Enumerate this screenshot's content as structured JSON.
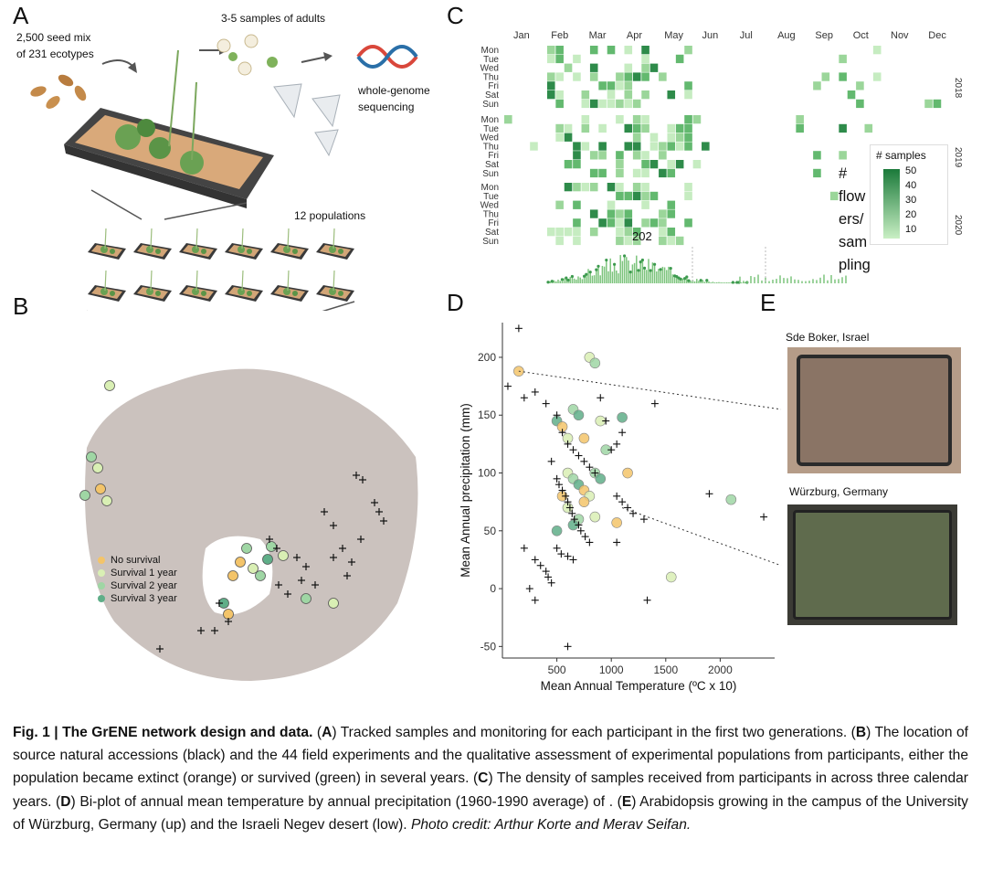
{
  "panels": {
    "a": "A",
    "b": "B",
    "c": "C",
    "d": "D",
    "e": "E"
  },
  "panel_a": {
    "seed_line1": "2,500 seed mix",
    "seed_line2": "of 231 ecotypes",
    "samples": "3-5 samples of adults",
    "wgs_line1": "whole-genome",
    "wgs_line2": "sequencing",
    "populations": "12 populations"
  },
  "panel_b": {
    "legend": [
      {
        "label": "No survival",
        "color": "#f3c46a"
      },
      {
        "label": "Survival 1 year",
        "color": "#d9efb4"
      },
      {
        "label": "Survival 2 year",
        "color": "#9fd6a4"
      },
      {
        "label": "Survival 3 year",
        "color": "#5fae88"
      }
    ]
  },
  "panel_c": {
    "months": [
      "Jan",
      "Feb",
      "Mar",
      "Apr",
      "May",
      "Jun",
      "Jul",
      "Aug",
      "Sep",
      "Oct",
      "Nov",
      "Dec"
    ],
    "days": [
      "Mon",
      "Tue",
      "Wed",
      "Thu",
      "Fri",
      "Sat",
      "Sun"
    ],
    "years": [
      "2018",
      "2019",
      "2020"
    ],
    "legend_title": "# samples",
    "legend_ticks": [
      "50",
      "40",
      "30",
      "20",
      "10"
    ],
    "annotation": [
      "#",
      "flow",
      "ers/",
      "sam",
      "pling"
    ],
    "peak_label": "202"
  },
  "panel_d": {
    "xlabel": "Mean Annual Temperature (ºC x 10)",
    "ylabel": "Mean Annual precipitation (mm)",
    "xticks": [
      "500",
      "1000",
      "1500",
      "2000"
    ],
    "yticks": [
      "200",
      "150",
      "100",
      "50",
      "0",
      "-50"
    ]
  },
  "panel_e": {
    "photo1_label": "Sde Boker, Israel",
    "photo2_label": "Würzburg, Germany"
  },
  "chart_data": [
    {
      "type": "heatmap",
      "title": "",
      "x": [
        "Jan",
        "Feb",
        "Mar",
        "Apr",
        "May",
        "Jun",
        "Jul",
        "Aug",
        "Sep",
        "Oct",
        "Nov",
        "Dec"
      ],
      "y": [
        "Mon",
        "Tue",
        "Wed",
        "Thu",
        "Fri",
        "Sat",
        "Sun"
      ],
      "facets": [
        "2018",
        "2019",
        "2020"
      ],
      "legend": {
        "title": "# samples",
        "range": [
          0,
          50
        ]
      }
    },
    {
      "type": "scatter",
      "xlabel": "Mean Annual Temperature (ºC x 10)",
      "ylabel": "Mean Annual precipitation (mm)",
      "xlim": [
        0,
        2500
      ],
      "ylim": [
        -60,
        230
      ],
      "series": [
        {
          "name": "",
          "marker": "plus",
          "points": [
            [
              150,
              225
            ],
            [
              50,
              175
            ],
            [
              200,
              165
            ],
            [
              300,
              170
            ],
            [
              400,
              160
            ],
            [
              500,
              150
            ],
            [
              550,
              135
            ],
            [
              600,
              125
            ],
            [
              650,
              120
            ],
            [
              700,
              115
            ],
            [
              750,
              110
            ],
            [
              800,
              105
            ],
            [
              850,
              100
            ],
            [
              450,
              110
            ],
            [
              500,
              95
            ],
            [
              520,
              90
            ],
            [
              550,
              85
            ],
            [
              580,
              80
            ],
            [
              600,
              75
            ],
            [
              620,
              70
            ],
            [
              640,
              65
            ],
            [
              660,
              60
            ],
            [
              700,
              55
            ],
            [
              720,
              50
            ],
            [
              760,
              45
            ],
            [
              800,
              40
            ],
            [
              500,
              35
            ],
            [
              540,
              30
            ],
            [
              600,
              28
            ],
            [
              650,
              25
            ],
            [
              300,
              25
            ],
            [
              350,
              20
            ],
            [
              400,
              15
            ],
            [
              420,
              10
            ],
            [
              450,
              5
            ],
            [
              250,
              0
            ],
            [
              300,
              -10
            ],
            [
              600,
              -50
            ],
            [
              1050,
              80
            ],
            [
              1100,
              75
            ],
            [
              1150,
              70
            ],
            [
              1200,
              65
            ],
            [
              1300,
              60
            ],
            [
              1900,
              82
            ],
            [
              2400,
              62
            ],
            [
              1400,
              160
            ],
            [
              1050,
              125
            ],
            [
              1100,
              135
            ],
            [
              900,
              165
            ],
            [
              950,
              145
            ],
            [
              1000,
              120
            ],
            [
              1330,
              -10
            ],
            [
              1050,
              40
            ],
            [
              200,
              35
            ]
          ]
        },
        {
          "name": "",
          "marker": "circle",
          "points": [
            [
              150,
              188
            ],
            [
              800,
              200
            ],
            [
              850,
              195
            ],
            [
              500,
              145
            ],
            [
              550,
              140
            ],
            [
              600,
              130
            ],
            [
              650,
              155
            ],
            [
              700,
              150
            ],
            [
              750,
              130
            ],
            [
              900,
              145
            ],
            [
              950,
              120
            ],
            [
              1100,
              148
            ],
            [
              1150,
              100
            ],
            [
              600,
              100
            ],
            [
              650,
              95
            ],
            [
              700,
              90
            ],
            [
              750,
              85
            ],
            [
              800,
              80
            ],
            [
              850,
              100
            ],
            [
              900,
              95
            ],
            [
              550,
              80
            ],
            [
              600,
              70
            ],
            [
              700,
              60
            ],
            [
              650,
              55
            ],
            [
              1050,
              57
            ],
            [
              1550,
              10
            ],
            [
              2100,
              77
            ],
            [
              500,
              50
            ],
            [
              750,
              75
            ],
            [
              850,
              62
            ]
          ]
        }
      ]
    }
  ],
  "caption": {
    "fig": "Fig. 1 | The GrENE network design and data.",
    "a_letter": "A",
    "a_text": " Tracked samples and monitoring for each participant in the first two generations. (",
    "b_letter": "B",
    "b_text": ") The location of source natural accessions (black) and the 44 field experiments and the qualitative assessment of experimental populations from participants, either the population became extinct (orange) or survived (green) in several years. (",
    "c_letter": "C",
    "c_text": ") The density of samples received from participants in across three calendar years. (",
    "d_letter": "D",
    "d_text": ") Bi-plot of annual mean temperature by annual precipitation (1960-1990 average) of . (",
    "e_letter": "E",
    "e_text": ") Arabidopsis growing in the campus of the University of Würzburg, Germany (up) and the Israeli Negev desert (low). ",
    "credit": "Photo credit: Arthur Korte and Merav Seifan."
  }
}
